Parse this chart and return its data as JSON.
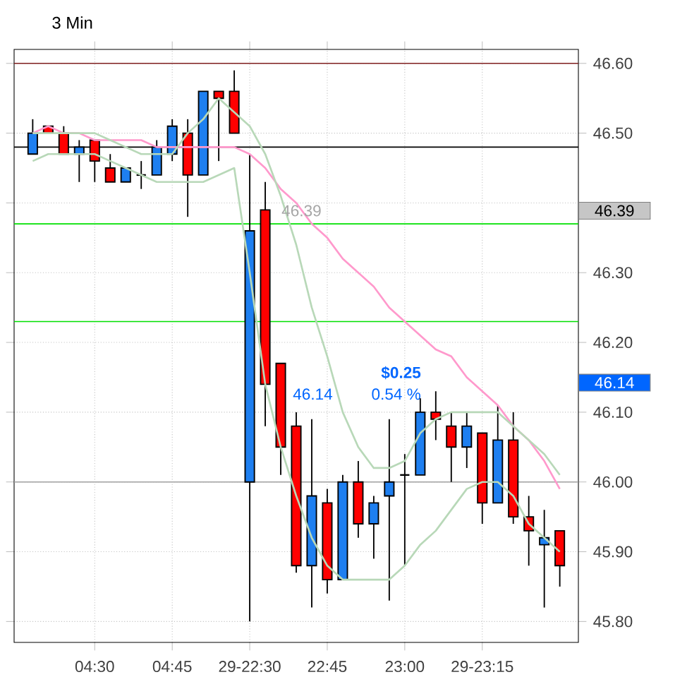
{
  "chart_data": {
    "type": "candlestick",
    "title": "3 Min",
    "categories": [
      null,
      null,
      null,
      null,
      "04:30",
      null,
      null,
      null,
      null,
      "04:45",
      null,
      null,
      null,
      null,
      "29-22:30",
      null,
      null,
      null,
      null,
      "22:45",
      null,
      null,
      null,
      null,
      "23:00",
      null,
      null,
      null,
      null,
      "29-23:15",
      null,
      null,
      null,
      null,
      null
    ],
    "ohlc": [
      [
        46.47,
        46.52,
        46.47,
        46.5
      ],
      [
        46.51,
        46.51,
        46.5,
        46.5
      ],
      [
        46.5,
        46.51,
        46.47,
        46.47
      ],
      [
        46.47,
        46.49,
        46.43,
        46.48
      ],
      [
        46.49,
        46.49,
        46.43,
        46.46
      ],
      [
        46.45,
        46.47,
        46.43,
        46.43
      ],
      [
        46.43,
        46.45,
        46.43,
        46.45
      ],
      [
        46.44,
        46.46,
        46.42,
        46.44
      ],
      [
        46.44,
        46.49,
        46.44,
        46.48
      ],
      [
        46.47,
        46.52,
        46.46,
        46.51
      ],
      [
        46.5,
        46.52,
        46.38,
        46.44
      ],
      [
        46.44,
        46.56,
        46.44,
        46.56
      ],
      [
        46.56,
        46.56,
        46.46,
        46.55
      ],
      [
        46.56,
        46.59,
        46.5,
        46.5
      ],
      [
        46.0,
        46.47,
        45.8,
        46.36
      ],
      [
        46.39,
        46.43,
        46.08,
        46.14
      ],
      [
        46.17,
        46.17,
        46.01,
        46.05
      ],
      [
        46.08,
        46.1,
        45.87,
        45.88
      ],
      [
        45.88,
        46.09,
        45.82,
        45.98
      ],
      [
        45.97,
        45.99,
        45.84,
        45.86
      ],
      [
        45.86,
        46.01,
        45.86,
        46.0
      ],
      [
        46.0,
        46.03,
        45.92,
        45.94
      ],
      [
        45.94,
        45.98,
        45.89,
        45.97
      ],
      [
        45.98,
        46.09,
        45.83,
        46.0
      ],
      [
        46.01,
        46.04,
        45.88,
        46.01
      ],
      [
        46.01,
        46.12,
        46.01,
        46.1
      ],
      [
        46.1,
        46.13,
        46.06,
        46.09
      ],
      [
        46.08,
        46.1,
        46.0,
        46.05
      ],
      [
        46.05,
        46.1,
        46.02,
        46.08
      ],
      [
        46.07,
        46.07,
        45.94,
        45.97
      ],
      [
        45.97,
        46.11,
        45.97,
        46.06
      ],
      [
        46.06,
        46.1,
        45.94,
        45.95
      ],
      [
        45.95,
        45.98,
        45.88,
        45.93
      ],
      [
        45.91,
        45.96,
        45.82,
        45.92
      ],
      [
        45.93,
        45.93,
        45.85,
        45.88
      ]
    ],
    "colors": [
      "#1e7ff0",
      "#ff0000",
      "#ff0000",
      "#1e7ff0",
      "#ff0000",
      "#ff0000",
      "#1e7ff0",
      "#000000",
      "#1e7ff0",
      "#1e7ff0",
      "#ff0000",
      "#1e7ff0",
      "#ff0000",
      "#ff0000",
      "#1e7ff0",
      "#ff0000",
      "#ff0000",
      "#ff0000",
      "#1e7ff0",
      "#ff0000",
      "#1e7ff0",
      "#ff0000",
      "#1e7ff0",
      "#1e7ff0",
      "#000000",
      "#1e7ff0",
      "#ff0000",
      "#ff0000",
      "#1e7ff0",
      "#ff0000",
      "#1e7ff0",
      "#ff0000",
      "#ff0000",
      "#1e7ff0",
      "#ff0000"
    ],
    "series": [
      {
        "type": "line",
        "color": "#ff99cc",
        "values": [
          46.5,
          46.51,
          46.5,
          46.5,
          46.49,
          46.49,
          46.49,
          46.49,
          46.48,
          46.48,
          46.48,
          46.48,
          46.48,
          46.48,
          46.47,
          46.45,
          46.42,
          46.4,
          46.37,
          46.35,
          46.32,
          46.3,
          46.28,
          46.25,
          46.23,
          46.21,
          46.19,
          46.18,
          46.15,
          46.13,
          46.11,
          46.08,
          46.06,
          46.03,
          45.99
        ]
      },
      {
        "type": "line",
        "color": "#b8d8b8",
        "values": [
          46.5,
          46.5,
          46.5,
          46.5,
          46.5,
          46.49,
          46.48,
          46.47,
          46.47,
          46.47,
          46.5,
          46.52,
          46.55,
          46.53,
          46.51,
          46.47,
          46.41,
          46.34,
          46.25,
          46.18,
          46.1,
          46.05,
          46.02,
          46.02,
          46.03,
          46.07,
          46.09,
          46.1,
          46.1,
          46.1,
          46.1,
          46.08,
          46.06,
          46.04,
          46.01
        ]
      },
      {
        "type": "line",
        "color": "#b8d8b8",
        "values": [
          46.46,
          46.47,
          46.47,
          46.47,
          46.47,
          46.46,
          46.45,
          46.44,
          46.43,
          46.43,
          46.43,
          46.43,
          46.44,
          46.45,
          46.3,
          46.14,
          46.05,
          45.98,
          45.92,
          45.88,
          45.86,
          45.86,
          45.86,
          45.86,
          45.88,
          45.91,
          45.93,
          45.96,
          45.99,
          46.0,
          46.0,
          45.98,
          45.94,
          45.92,
          45.9
        ]
      }
    ],
    "ylim": [
      45.77,
      46.62
    ],
    "yticks": [
      {
        "value": 45.8,
        "label": "45.80"
      },
      {
        "value": 45.9,
        "label": "45.90"
      },
      {
        "value": 46.0,
        "label": "46.00"
      },
      {
        "value": 46.1,
        "label": "46.10"
      },
      {
        "value": 46.2,
        "label": "46.20"
      },
      {
        "value": 46.3,
        "label": "46.30"
      },
      {
        "value": 46.4,
        "label": null
      },
      {
        "value": 46.5,
        "label": "46.50"
      },
      {
        "value": 46.6,
        "label": "46.60"
      }
    ],
    "ref_lines": [
      {
        "axis": "y",
        "value": 46.6,
        "color": "#802020"
      },
      {
        "axis": "y",
        "value": 46.48,
        "color": "#000000"
      },
      {
        "axis": "y",
        "value": 46.37,
        "color": "#00e000"
      },
      {
        "axis": "y",
        "value": 46.23,
        "color": "#00e000"
      },
      {
        "axis": "y",
        "value": 46.0,
        "color": "#a0a0a0"
      }
    ],
    "annotations": [
      "46.39",
      "$0.25",
      "46.14",
      "0.54 %",
      "46.39",
      "46.14"
    ],
    "grid": true
  }
}
